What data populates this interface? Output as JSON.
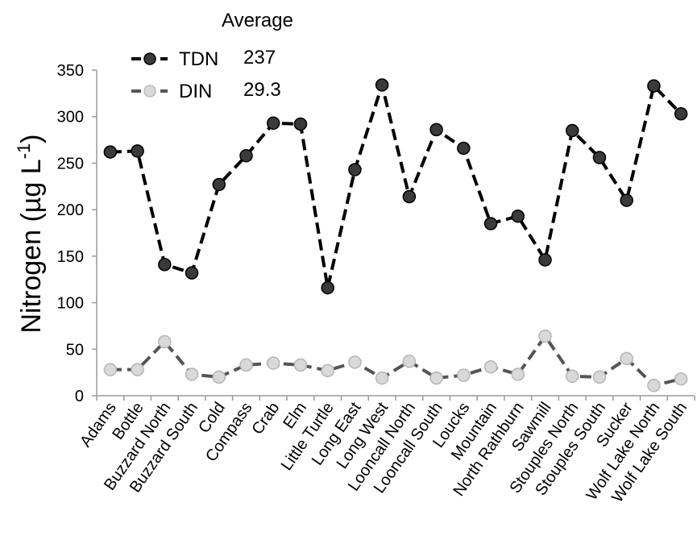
{
  "chart_data": {
    "type": "line",
    "title": "",
    "xlabel": "",
    "ylabel_main": "Nitrogen (µg L",
    "ylabel_sup": "-1",
    "ylabel_close": ")",
    "ylim": [
      0,
      350
    ],
    "yticks": [
      0,
      50,
      100,
      150,
      200,
      250,
      300,
      350
    ],
    "grid": false,
    "legend_placement": "top-left",
    "legend_title": "Average",
    "categories": [
      "Adams",
      "Bottle",
      "Buzzard North",
      "Buzzard South",
      "Cold",
      "Compass",
      "Crab",
      "Elm",
      "Little Turtle",
      "Long East",
      "Long West",
      "Looncall North",
      "Looncall South",
      "Loucks",
      "Mountain",
      "North Rathburn",
      "Sawmill",
      "Stouples North",
      "Stouples South",
      "Sucker",
      "Wolf Lake North",
      "Wolf Lake South"
    ],
    "series": [
      {
        "name": "TDN",
        "average": "237",
        "line_color": "#000000",
        "marker_fill": "#3a3a3a",
        "values": [
          262,
          263,
          141,
          132,
          227,
          258,
          293,
          292,
          116,
          243,
          334,
          214,
          286,
          266,
          185,
          193,
          146,
          285,
          256,
          210,
          333,
          303
        ]
      },
      {
        "name": "DIN",
        "average": "29.3",
        "line_color": "#555555",
        "marker_fill": "#d9d9d9",
        "values": [
          28,
          28,
          58,
          23,
          20,
          33,
          35,
          33,
          27,
          36,
          19,
          37,
          19,
          22,
          31,
          23,
          64,
          21,
          20,
          40,
          11,
          18
        ]
      }
    ]
  }
}
